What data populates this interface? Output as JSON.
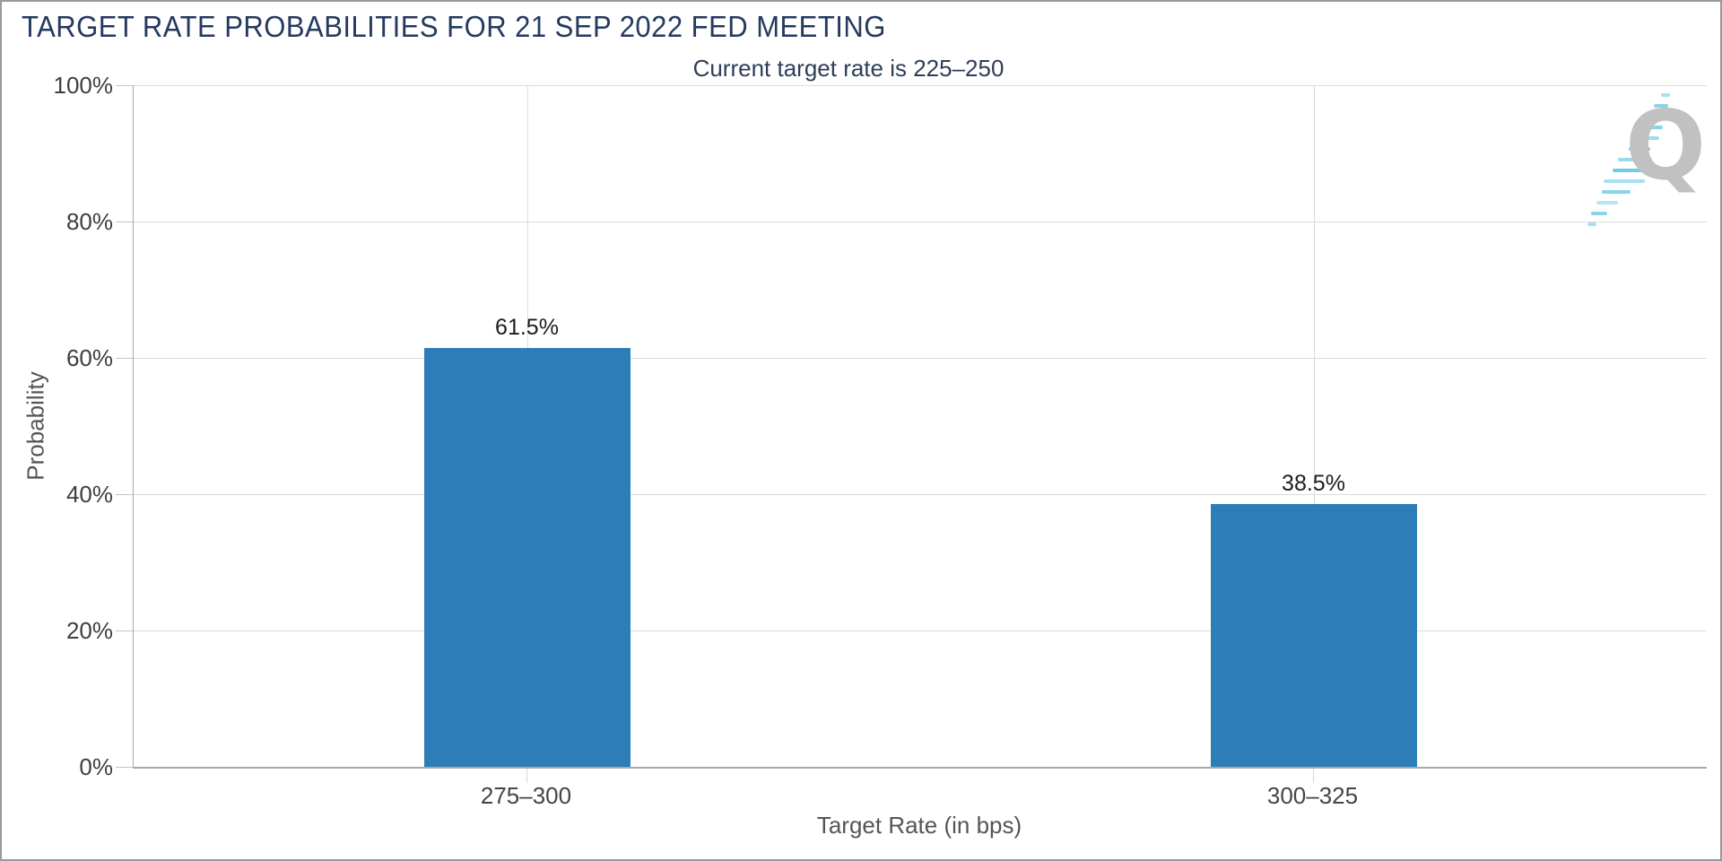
{
  "chart_data": {
    "type": "bar",
    "title": "TARGET RATE PROBABILITIES FOR 21 SEP 2022 FED MEETING",
    "subtitle": "Current target rate is 225–250",
    "categories": [
      "275–300",
      "300–325"
    ],
    "values": [
      61.5,
      38.5
    ],
    "value_labels": [
      "61.5%",
      "38.5%"
    ],
    "xlabel": "Target Rate (in bps)",
    "ylabel": "Probability",
    "ylim": [
      0,
      100
    ],
    "ytick_labels": [
      "0%",
      "20%",
      "40%",
      "60%",
      "80%",
      "100%"
    ],
    "grid": true,
    "legend": "none",
    "bar_color": "#2d7eb8"
  },
  "watermark": {
    "letter": "Q"
  },
  "colors": {
    "title_navy": "#243a5f",
    "bar_blue": "#2d7eb8",
    "gridline": "#dcdcdc",
    "axis_line": "#a9a9a9",
    "tick_text": "#3f3f3f",
    "watermark_gray": "#bcbcbc",
    "watermark_cyan": "#7dd2ea"
  }
}
